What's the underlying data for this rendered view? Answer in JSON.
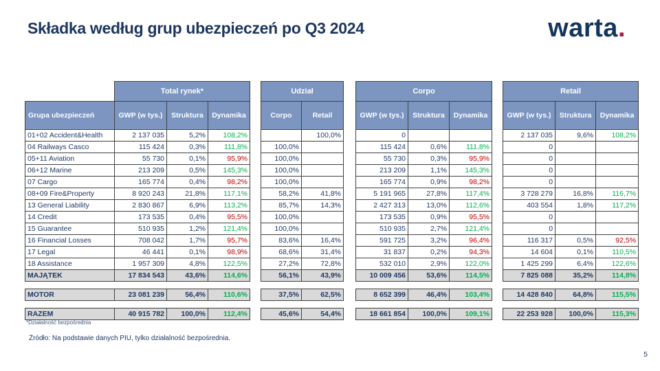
{
  "slide": {
    "title": "Składka według grup ubezpieczeń po Q3 2024",
    "footnote": "*Działalność bezpośrednia",
    "source": "Źródło: Na podstawie danych PIU, tylko działalność bezpośrednia.",
    "page_number": "5"
  },
  "logo": {
    "wordmark": "warta",
    "dot": "."
  },
  "colors": {
    "header_bg": "#7C96C1",
    "navy_text": "#1F3864",
    "positive_green": "#00B050",
    "negative_red": "#C00000",
    "summary_bg": "#D9D9D9",
    "logo_navy": "#14365C",
    "logo_red": "#B5123E"
  },
  "table": {
    "row_header_label": "Grupa ubezpieczeń",
    "groups": [
      {
        "id": "total",
        "label": "Total rynek*",
        "columns": [
          "GWP (w tys.)",
          "Struktura",
          "Dynamika"
        ]
      },
      {
        "id": "udzial",
        "label": "Udział",
        "columns": [
          "Corpo",
          "Retail"
        ]
      },
      {
        "id": "corpo",
        "label": "Corpo",
        "columns": [
          "GWP (w tys.)",
          "Struktura",
          "Dynamika"
        ]
      },
      {
        "id": "retail",
        "label": "Retail",
        "columns": [
          "GWP (w tys.)",
          "Struktura",
          "Dynamika"
        ]
      }
    ],
    "rows": [
      {
        "label": "01+02 Accident&Health",
        "total": [
          "2 137 035",
          "5,2%",
          "108,2%"
        ],
        "udzial": [
          "",
          "100,0%"
        ],
        "corpo": [
          "0",
          "",
          ""
        ],
        "retail": [
          "2 137 035",
          "9,6%",
          "108,2%"
        ]
      },
      {
        "label": "04 Railways Casco",
        "total": [
          "115 424",
          "0,3%",
          "111,8%"
        ],
        "udzial": [
          "100,0%",
          ""
        ],
        "corpo": [
          "115 424",
          "0,6%",
          "111,8%"
        ],
        "retail": [
          "0",
          "",
          ""
        ]
      },
      {
        "label": "05+11 Aviation",
        "total": [
          "55 730",
          "0,1%",
          "95,9%"
        ],
        "udzial": [
          "100,0%",
          ""
        ],
        "corpo": [
          "55 730",
          "0,3%",
          "95,9%"
        ],
        "retail": [
          "0",
          "",
          ""
        ]
      },
      {
        "label": "06+12 Marine",
        "total": [
          "213 209",
          "0,5%",
          "145,3%"
        ],
        "udzial": [
          "100,0%",
          ""
        ],
        "corpo": [
          "213 209",
          "1,1%",
          "145,3%"
        ],
        "retail": [
          "0",
          "",
          ""
        ]
      },
      {
        "label": "07 Cargo",
        "total": [
          "165 774",
          "0,4%",
          "98,2%"
        ],
        "udzial": [
          "100,0%",
          ""
        ],
        "corpo": [
          "165 774",
          "0,9%",
          "98,2%"
        ],
        "retail": [
          "0",
          "",
          ""
        ]
      },
      {
        "label": "08+09 Fire&Property",
        "total": [
          "8 920 243",
          "21,8%",
          "117,1%"
        ],
        "udzial": [
          "58,2%",
          "41,8%"
        ],
        "corpo": [
          "5 191 965",
          "27,8%",
          "117,4%"
        ],
        "retail": [
          "3 728 279",
          "16,8%",
          "116,7%"
        ]
      },
      {
        "label": "13 General Liability",
        "total": [
          "2 830 867",
          "6,9%",
          "113,2%"
        ],
        "udzial": [
          "85,7%",
          "14,3%"
        ],
        "corpo": [
          "2 427 313",
          "13,0%",
          "112,6%"
        ],
        "retail": [
          "403 554",
          "1,8%",
          "117,2%"
        ]
      },
      {
        "label": "14 Credit",
        "total": [
          "173 535",
          "0,4%",
          "95,5%"
        ],
        "udzial": [
          "100,0%",
          ""
        ],
        "corpo": [
          "173 535",
          "0,9%",
          "95,5%"
        ],
        "retail": [
          "0",
          "",
          ""
        ]
      },
      {
        "label": "15 Guarantee",
        "total": [
          "510 935",
          "1,2%",
          "121,4%"
        ],
        "udzial": [
          "100,0%",
          ""
        ],
        "corpo": [
          "510 935",
          "2,7%",
          "121,4%"
        ],
        "retail": [
          "0",
          "",
          ""
        ]
      },
      {
        "label": "16 Financial Losses",
        "total": [
          "708 042",
          "1,7%",
          "95,7%"
        ],
        "udzial": [
          "83,6%",
          "16,4%"
        ],
        "corpo": [
          "591 725",
          "3,2%",
          "96,4%"
        ],
        "retail": [
          "116 317",
          "0,5%",
          "92,5%"
        ]
      },
      {
        "label": "17 Legal",
        "total": [
          "46 441",
          "0,1%",
          "98,9%"
        ],
        "udzial": [
          "68,6%",
          "31,4%"
        ],
        "corpo": [
          "31 837",
          "0,2%",
          "94,3%"
        ],
        "retail": [
          "14 604",
          "0,1%",
          "110,5%"
        ]
      },
      {
        "label": "18 Assistance",
        "total": [
          "1 957 309",
          "4,8%",
          "122,5%"
        ],
        "udzial": [
          "27,2%",
          "72,8%"
        ],
        "corpo": [
          "532 010",
          "2,9%",
          "122,0%"
        ],
        "retail": [
          "1 425 299",
          "6,4%",
          "122,6%"
        ]
      }
    ],
    "summary_rows": [
      {
        "label": "MAJĄTEK",
        "summary": true,
        "attached": true,
        "total": [
          "17 834 543",
          "43,6%",
          "114,6%"
        ],
        "udzial": [
          "56,1%",
          "43,9%"
        ],
        "corpo": [
          "10 009 456",
          "53,6%",
          "114,5%"
        ],
        "retail": [
          "7 825 088",
          "35,2%",
          "114,8%"
        ]
      },
      {
        "label": "MOTOR",
        "summary": true,
        "attached": false,
        "total": [
          "23 081 239",
          "56,4%",
          "110,6%"
        ],
        "udzial": [
          "37,5%",
          "62,5%"
        ],
        "corpo": [
          "8 652 399",
          "46,4%",
          "103,4%"
        ],
        "retail": [
          "14 428 840",
          "64,8%",
          "115,5%"
        ]
      },
      {
        "label": "RAZEM",
        "summary": true,
        "attached": false,
        "total": [
          "40 915 782",
          "100,0%",
          "112,4%"
        ],
        "udzial": [
          "45,6%",
          "54,4%"
        ],
        "corpo": [
          "18 661 854",
          "100,0%",
          "109,1%"
        ],
        "retail": [
          "22 253 928",
          "100,0%",
          "115,3%"
        ]
      }
    ]
  }
}
